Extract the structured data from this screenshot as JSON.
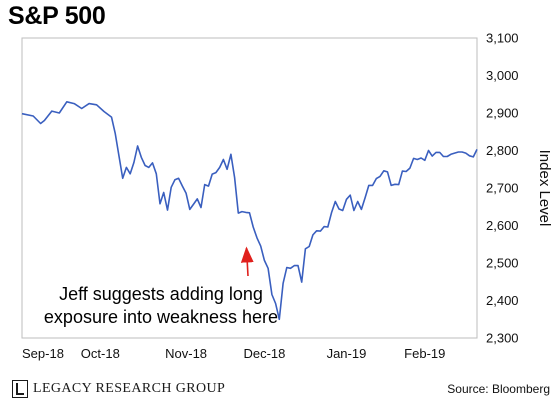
{
  "chart_data": {
    "type": "line",
    "title": "S&P 500",
    "ylabel": "Index Level",
    "xlabel": "",
    "ylim": [
      2300,
      3100
    ],
    "yticks": [
      2300,
      2400,
      2500,
      2600,
      2700,
      2800,
      2900,
      3000,
      3100
    ],
    "ytick_labels": [
      "2,300",
      "2,400",
      "2,500",
      "2,600",
      "2,700",
      "2,800",
      "2,900",
      "3,000",
      "3,100"
    ],
    "xlim": [
      0,
      122
    ],
    "xticks": [
      0,
      21,
      44,
      65,
      87,
      108
    ],
    "xtick_labels": [
      "Sep-18",
      "Oct-18",
      "Nov-18",
      "Dec-18",
      "Jan-19",
      "Feb-19"
    ],
    "legend": "none",
    "grid": false,
    "line_color": "#3a5fbf",
    "series": [
      {
        "x": [
          0,
          3,
          5,
          6,
          8,
          10,
          12,
          14,
          16,
          18,
          20,
          22,
          24,
          25,
          26,
          27,
          28,
          29,
          30,
          31,
          32,
          33,
          34,
          35,
          36,
          37,
          38,
          39,
          40,
          41,
          42,
          43,
          44,
          45,
          46,
          47,
          48,
          49,
          50,
          51,
          52,
          53,
          54,
          55,
          56,
          57,
          58,
          59,
          60,
          61,
          62,
          63,
          64,
          65,
          66,
          67,
          68,
          69,
          70,
          71,
          72,
          73,
          74,
          75,
          76,
          77,
          78,
          79,
          80,
          81,
          82,
          83,
          84,
          85,
          86,
          87,
          88,
          89,
          90,
          91,
          92,
          93,
          94,
          95,
          96,
          97,
          98,
          99,
          100,
          101,
          102,
          103,
          104,
          105,
          106,
          107,
          108,
          109,
          110,
          111,
          112,
          113,
          114,
          115,
          116,
          117,
          118,
          119,
          120,
          121,
          122
        ],
        "y": [
          2898,
          2892,
          2872,
          2880,
          2905,
          2900,
          2930,
          2925,
          2912,
          2925,
          2922,
          2904,
          2889,
          2846,
          2785,
          2726,
          2755,
          2738,
          2768,
          2812,
          2782,
          2760,
          2755,
          2767,
          2738,
          2658,
          2688,
          2641,
          2702,
          2722,
          2726,
          2705,
          2686,
          2643,
          2657,
          2671,
          2648,
          2709,
          2705,
          2737,
          2741,
          2755,
          2776,
          2750,
          2790,
          2728,
          2633,
          2637,
          2635,
          2634,
          2596,
          2567,
          2545,
          2507,
          2486,
          2416,
          2392,
          2350,
          2446,
          2488,
          2486,
          2493,
          2493,
          2449,
          2538,
          2544,
          2575,
          2586,
          2585,
          2597,
          2596,
          2634,
          2664,
          2644,
          2640,
          2670,
          2681,
          2640,
          2664,
          2643,
          2674,
          2707,
          2707,
          2725,
          2731,
          2746,
          2743,
          2707,
          2710,
          2709,
          2745,
          2744,
          2753,
          2779,
          2776,
          2780,
          2774,
          2800,
          2785,
          2795,
          2795,
          2784,
          2784,
          2790,
          2793,
          2796,
          2796,
          2793,
          2786,
          2783,
          2803
        ]
      }
    ],
    "annotation": {
      "lines": [
        "Jeff suggests adding long",
        "exposure into weakness here"
      ],
      "arrow_target": {
        "x": 61,
        "y": 2545
      },
      "arrow_color": "#e0201c"
    }
  },
  "footer": {
    "logo_text": "LEGACY RESEARCH GROUP",
    "source": "Source: Bloomberg"
  }
}
